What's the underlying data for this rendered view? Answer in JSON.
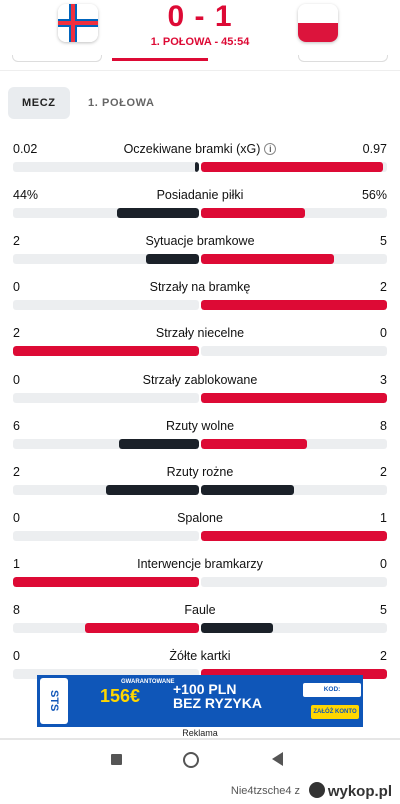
{
  "header": {
    "score": "0 - 1",
    "period": "1. POŁOWA - 45:54",
    "home_flag": "faroe-islands-flag",
    "away_flag": "poland-flag"
  },
  "tabs": [
    {
      "label": "MECZ",
      "active": true
    },
    {
      "label": "1. POŁOWA",
      "active": false
    }
  ],
  "stats": [
    {
      "label": "Oczekiwane bramki (xG)",
      "home": "0.02",
      "away": "0.97",
      "home_share": 0.02,
      "away_share": 0.98,
      "info": "i"
    },
    {
      "label": "Posiadanie piłki",
      "home": "44%",
      "away": "56%",
      "home_share": 0.44,
      "away_share": 0.56
    },
    {
      "label": "Sytuacje bramkowe",
      "home": "2",
      "away": "5",
      "home_share": 0.2857,
      "away_share": 0.7143
    },
    {
      "label": "Strzały na bramkę",
      "home": "0",
      "away": "2",
      "home_share": 0,
      "away_share": 1
    },
    {
      "label": "Strzały niecelne",
      "home": "2",
      "away": "0",
      "home_share": 1,
      "away_share": 0
    },
    {
      "label": "Strzały zablokowane",
      "home": "0",
      "away": "3",
      "home_share": 0,
      "away_share": 1
    },
    {
      "label": "Rzuty wolne",
      "home": "6",
      "away": "8",
      "home_share": 0.4286,
      "away_share": 0.5714
    },
    {
      "label": "Rzuty rożne",
      "home": "2",
      "away": "2",
      "home_share": 0.5,
      "away_share": 0.5
    },
    {
      "label": "Spalone",
      "home": "0",
      "away": "1",
      "home_share": 0,
      "away_share": 1
    },
    {
      "label": "Interwencje bramkarzy",
      "home": "1",
      "away": "0",
      "home_share": 1,
      "away_share": 0
    },
    {
      "label": "Faule",
      "home": "8",
      "away": "5",
      "home_share": 0.6154,
      "away_share": 0.3846
    },
    {
      "label": "Żółte kartki",
      "home": "0",
      "away": "2",
      "home_share": 0,
      "away_share": 1
    }
  ],
  "ad": {
    "brand": "STS",
    "small": "GWARANTOWANE",
    "amount": "156€",
    "bonus_line1": "+100 PLN",
    "bonus_line2": "BEZ RYZYKA",
    "code": "KOD: FLASHSCORE",
    "cta": "ZAŁÓŻ KONTO",
    "label": "Reklama"
  },
  "footer": {
    "user": "Nie4tzsche4  z",
    "site": "wykop.pl"
  },
  "colors": {
    "accent": "#dd0a35",
    "dark": "#1b2129",
    "track": "#eceef0"
  }
}
